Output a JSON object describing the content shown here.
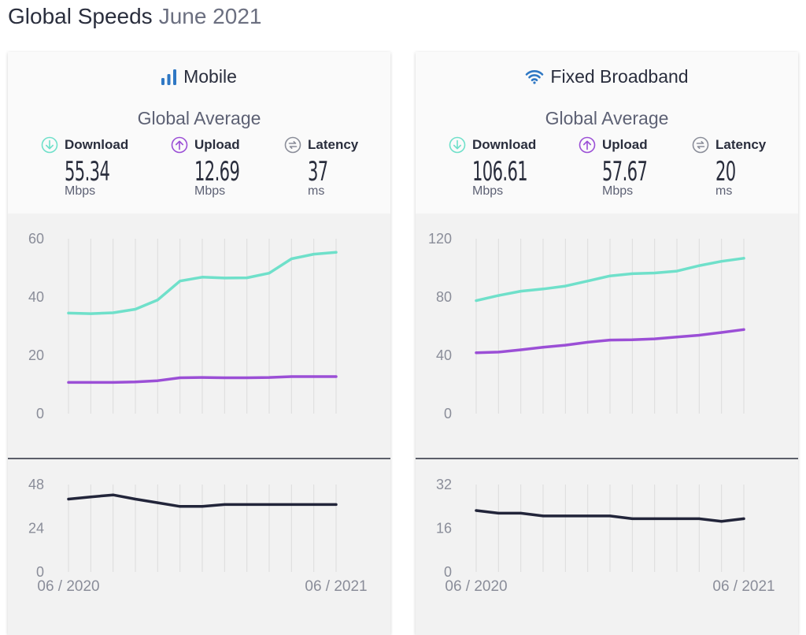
{
  "page": {
    "title": "Global Speeds",
    "subtitle": "June 2021"
  },
  "colors": {
    "download": "#6fe0ca",
    "upload": "#9b4fd6",
    "latency": "#22253a",
    "axis_text": "#8a8d99",
    "grid": "#dcdcdc"
  },
  "cards": [
    {
      "id": "mobile",
      "title": "Mobile",
      "icon": "signal-bars-icon",
      "avg_label": "Global Average",
      "metrics": [
        {
          "key": "download",
          "label": "Download",
          "icon": "download-arrow-icon",
          "value": "55.34",
          "unit": "Mbps"
        },
        {
          "key": "upload",
          "label": "Upload",
          "icon": "upload-arrow-icon",
          "value": "12.69",
          "unit": "Mbps"
        },
        {
          "key": "latency",
          "label": "Latency",
          "icon": "latency-icon",
          "value": "37",
          "unit": "ms"
        }
      ]
    },
    {
      "id": "fixed",
      "title": "Fixed Broadband",
      "icon": "wifi-icon",
      "avg_label": "Global Average",
      "metrics": [
        {
          "key": "download",
          "label": "Download",
          "icon": "download-arrow-icon",
          "value": "106.61",
          "unit": "Mbps"
        },
        {
          "key": "upload",
          "label": "Upload",
          "icon": "upload-arrow-icon",
          "value": "57.67",
          "unit": "Mbps"
        },
        {
          "key": "latency",
          "label": "Latency",
          "icon": "latency-icon",
          "value": "20",
          "unit": "ms"
        }
      ]
    }
  ],
  "chart_data": [
    {
      "type": "line",
      "panel": "Mobile speed",
      "x": [
        "06 / 2020",
        "07 / 2020",
        "08 / 2020",
        "09 / 2020",
        "10 / 2020",
        "11 / 2020",
        "12 / 2020",
        "01 / 2021",
        "02 / 2021",
        "03 / 2021",
        "04 / 2021",
        "05 / 2021",
        "06 / 2021"
      ],
      "x_tick_labels": [
        "06 / 2020",
        "06 / 2021"
      ],
      "series": [
        {
          "key": "download",
          "values": [
            34.5,
            34.3,
            34.6,
            35.8,
            39,
            45.5,
            46.8,
            46.5,
            46.6,
            48.2,
            53.1,
            54.7,
            55.34
          ]
        },
        {
          "key": "upload",
          "values": [
            10.7,
            10.7,
            10.7,
            10.9,
            11.3,
            12.3,
            12.4,
            12.3,
            12.3,
            12.4,
            12.7,
            12.7,
            12.69
          ]
        }
      ],
      "ylim": [
        0,
        60
      ],
      "y_ticks": [
        0,
        20,
        40,
        60
      ],
      "grid": "vertical"
    },
    {
      "type": "line",
      "panel": "Mobile latency",
      "x": [
        "06 / 2020",
        "07 / 2020",
        "08 / 2020",
        "09 / 2020",
        "10 / 2020",
        "11 / 2020",
        "12 / 2020",
        "01 / 2021",
        "02 / 2021",
        "03 / 2021",
        "04 / 2021",
        "05 / 2021",
        "06 / 2021"
      ],
      "series": [
        {
          "key": "latency",
          "values": [
            40,
            41.2,
            42.3,
            40,
            38,
            36,
            36,
            37,
            37,
            37,
            37,
            37,
            37
          ]
        }
      ],
      "ylim": [
        0,
        48
      ],
      "y_ticks": [
        0,
        24,
        48
      ],
      "grid": "vertical"
    },
    {
      "type": "line",
      "panel": "Fixed Broadband speed",
      "x": [
        "06 / 2020",
        "07 / 2020",
        "08 / 2020",
        "09 / 2020",
        "10 / 2020",
        "11 / 2020",
        "12 / 2020",
        "01 / 2021",
        "02 / 2021",
        "03 / 2021",
        "04 / 2021",
        "05 / 2021",
        "06 / 2021"
      ],
      "x_tick_labels": [
        "06 / 2020",
        "06 / 2021"
      ],
      "series": [
        {
          "key": "download",
          "values": [
            77.5,
            81,
            84,
            85.5,
            87.5,
            91,
            94.5,
            96,
            96.5,
            97.8,
            101.5,
            104.5,
            106.61
          ]
        },
        {
          "key": "upload",
          "values": [
            41.8,
            42.2,
            43.8,
            45.5,
            47,
            49,
            50.5,
            50.7,
            51.3,
            52.6,
            53.8,
            55.7,
            57.67
          ]
        }
      ],
      "ylim": [
        0,
        120
      ],
      "y_ticks": [
        0,
        40,
        80,
        120
      ],
      "grid": "vertical"
    },
    {
      "type": "line",
      "panel": "Fixed Broadband latency",
      "x": [
        "06 / 2020",
        "07 / 2020",
        "08 / 2020",
        "09 / 2020",
        "10 / 2020",
        "11 / 2020",
        "12 / 2020",
        "01 / 2021",
        "02 / 2021",
        "03 / 2021",
        "04 / 2021",
        "05 / 2021",
        "06 / 2021"
      ],
      "series": [
        {
          "key": "latency",
          "values": [
            22.5,
            21.5,
            21.5,
            20.5,
            20.5,
            20.5,
            20.5,
            19.5,
            19.5,
            19.5,
            19.5,
            18.5,
            19.5
          ]
        }
      ],
      "ylim": [
        0,
        32
      ],
      "y_ticks": [
        0,
        16,
        32
      ],
      "grid": "vertical"
    }
  ]
}
